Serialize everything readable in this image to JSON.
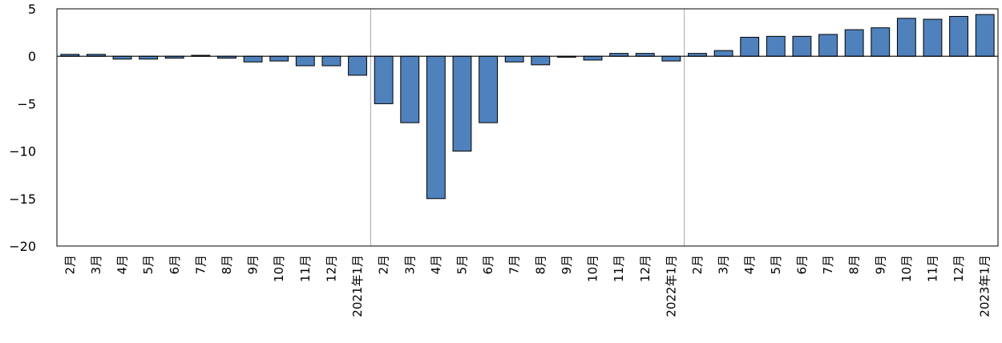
{
  "chart_data": {
    "type": "bar",
    "title": "",
    "xlabel": "",
    "ylabel": "",
    "ylim": [
      -20,
      5
    ],
    "yticks": [
      5,
      0,
      -5,
      -10,
      -15,
      -20
    ],
    "categories": [
      "2月",
      "3月",
      "4月",
      "5月",
      "6月",
      "7月",
      "8月",
      "9月",
      "10月",
      "11月",
      "12月",
      "2021年1月",
      "2月",
      "3月",
      "4月",
      "5月",
      "6月",
      "7月",
      "8月",
      "9月",
      "10月",
      "11月",
      "12月",
      "2022年1月",
      "2月",
      "3月",
      "4月",
      "5月",
      "6月",
      "7月",
      "8月",
      "9月",
      "10月",
      "11月",
      "12月",
      "2023年1月"
    ],
    "values": [
      0.2,
      0.2,
      -0.3,
      -0.3,
      -0.2,
      0.1,
      -0.2,
      -0.6,
      -0.5,
      -1.0,
      -1.0,
      -2.0,
      -5.0,
      -7.0,
      -15.0,
      -10.0,
      -7.0,
      -0.6,
      -0.9,
      -0.1,
      -0.4,
      0.3,
      0.3,
      -0.5,
      0.3,
      0.6,
      2.0,
      2.1,
      2.1,
      2.3,
      2.8,
      3.0,
      4.0,
      3.9,
      4.2,
      4.4
    ],
    "bar_color": "#4f81bd",
    "bar_edge_color": "#000000",
    "year_dividers_after": [
      "2021年1月",
      "2022年1月"
    ],
    "grid": false,
    "legend": "none"
  }
}
